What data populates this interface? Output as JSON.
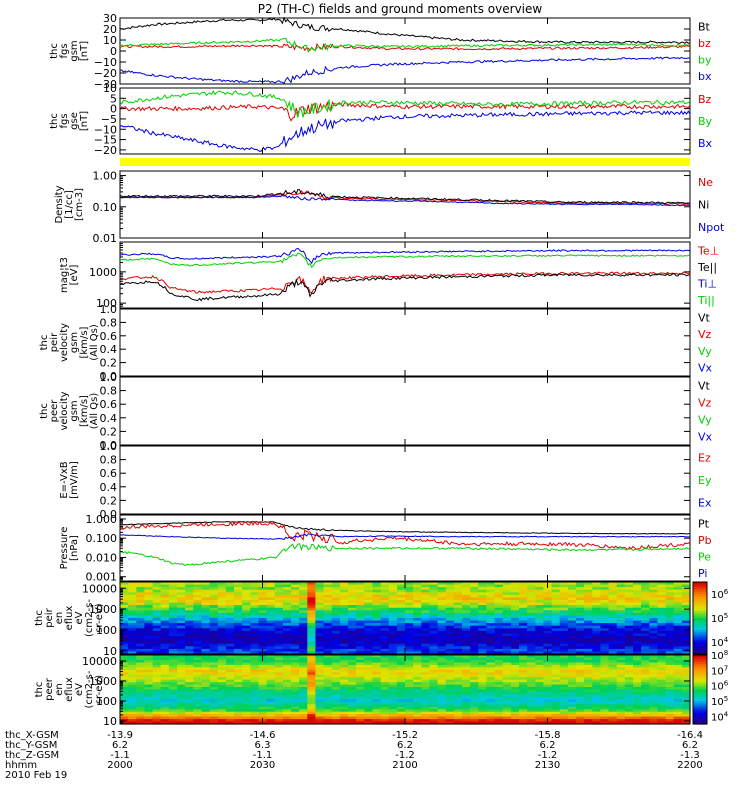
{
  "title": "P2 (TH-C) fields and ground moments overview",
  "colors": {
    "black": "#000000",
    "red": "#e00000",
    "green": "#00d000",
    "blue": "#0000e0",
    "yellow": "#ffff00"
  },
  "chart_data": [
    {
      "type": "line",
      "panel": "fgs_gsm",
      "ylabel": [
        "thc",
        "fgs",
        "gsm",
        "[nT]"
      ],
      "ylim": [
        -30,
        30
      ],
      "yticks": [
        "30",
        "20",
        "10",
        "0",
        "−10",
        "−20",
        "−30"
      ],
      "yticks_values": [
        30,
        20,
        10,
        0,
        -10,
        -20,
        -30
      ],
      "series": [
        {
          "name": "Bt",
          "color": "black",
          "x": [
            0,
            20,
            40,
            60,
            80,
            92,
            110,
            130,
            160,
            200,
            260,
            300,
            335
          ],
          "values": [
            20,
            24,
            26,
            28,
            28,
            29,
            22,
            20,
            15,
            10,
            8,
            8,
            8
          ],
          "noise": 1
        },
        {
          "name": "bz",
          "color": "red",
          "x": [
            0,
            40,
            80,
            96,
            110,
            130,
            160,
            220,
            300,
            335
          ],
          "values": [
            4,
            4,
            5,
            4,
            3,
            4,
            2,
            2,
            3,
            4
          ],
          "noise": 1
        },
        {
          "name": "by",
          "color": "green",
          "x": [
            0,
            40,
            80,
            96,
            110,
            130,
            160,
            220,
            300,
            335
          ],
          "values": [
            5,
            7,
            9,
            10,
            2,
            5,
            4,
            5,
            6,
            5
          ],
          "noise": 1
        },
        {
          "name": "bx",
          "color": "blue",
          "x": [
            0,
            20,
            40,
            60,
            80,
            92,
            100,
            110,
            130,
            160,
            200,
            260,
            300,
            335
          ],
          "values": [
            -18,
            -22,
            -25,
            -27,
            -28,
            -28,
            -26,
            -20,
            -15,
            -12,
            -10,
            -8,
            -7,
            -6
          ],
          "noise": 1
        }
      ]
    },
    {
      "type": "line",
      "panel": "fgs_gse",
      "ylabel": [
        "thc",
        "fgs",
        "gse",
        "[nT]"
      ],
      "ylim": [
        -22,
        10
      ],
      "yticks": [
        "10",
        "5",
        "0",
        "−5",
        "−10",
        "−15",
        "−20"
      ],
      "yticks_values": [
        10,
        5,
        0,
        -5,
        -10,
        -15,
        -20
      ],
      "series": [
        {
          "name": "Bz",
          "color": "red",
          "x": [
            0,
            40,
            80,
            95,
            100,
            110,
            130,
            160,
            220,
            300,
            335
          ],
          "values": [
            0,
            0,
            1,
            0,
            -3,
            0,
            2,
            1,
            1,
            1,
            1
          ],
          "noise": 1
        },
        {
          "name": "By",
          "color": "green",
          "x": [
            0,
            30,
            60,
            80,
            95,
            105,
            130,
            160,
            220,
            300,
            335
          ],
          "values": [
            3,
            6,
            8,
            7,
            5,
            -2,
            3,
            3,
            2,
            3,
            3
          ],
          "noise": 1
        },
        {
          "name": "Bx",
          "color": "blue",
          "x": [
            0,
            20,
            40,
            60,
            80,
            92,
            100,
            110,
            130,
            160,
            220,
            300,
            335
          ],
          "values": [
            -8,
            -12,
            -15,
            -18,
            -20,
            -19,
            -14,
            -10,
            -6,
            -4,
            -3,
            -2,
            -2
          ],
          "noise": 1
        }
      ]
    },
    {
      "type": "line",
      "panel": "density",
      "ylabel": [
        "Density",
        "[1/cc]",
        "[cm-3]"
      ],
      "scale": "log",
      "ylim": [
        0.01,
        1.4
      ],
      "yticks": [
        "1.00",
        "0.10",
        "0.01"
      ],
      "yticks_values": [
        1.0,
        0.1,
        0.01
      ],
      "series": [
        {
          "name": "Ne",
          "color": "red",
          "x": [
            0,
            40,
            80,
            95,
            108,
            120,
            140,
            180,
            220,
            260,
            300,
            335
          ],
          "values": [
            0.2,
            0.2,
            0.2,
            0.25,
            0.3,
            0.2,
            0.18,
            0.17,
            0.15,
            0.13,
            0.13,
            0.12
          ],
          "noise": 0.04
        },
        {
          "name": "Ni",
          "color": "black",
          "x": [
            0,
            40,
            80,
            95,
            108,
            120,
            140,
            180,
            220,
            260,
            300,
            335
          ],
          "values": [
            0.22,
            0.22,
            0.22,
            0.27,
            0.3,
            0.22,
            0.2,
            0.18,
            0.16,
            0.14,
            0.14,
            0.13
          ],
          "noise": 0.06
        },
        {
          "name": "Npot",
          "color": "blue",
          "x": [
            0,
            40,
            80,
            95,
            108,
            120,
            140,
            180,
            220,
            260,
            300,
            335
          ],
          "values": [
            0.2,
            0.2,
            0.2,
            0.22,
            0.18,
            0.18,
            0.16,
            0.15,
            0.13,
            0.12,
            0.12,
            0.11
          ],
          "noise": 0.03
        }
      ]
    },
    {
      "type": "line",
      "panel": "temperature",
      "ylabel": [
        "mag¦t3",
        "[eV]"
      ],
      "scale": "log",
      "ylim": [
        70,
        9000
      ],
      "yticks": [
        "1000",
        "100"
      ],
      "yticks_values": [
        1000,
        100
      ],
      "series": [
        {
          "name": "Te⊥",
          "color": "red",
          "x": [
            0,
            20,
            30,
            45,
            60,
            80,
            95,
            105,
            112,
            120,
            150,
            200,
            260,
            300,
            335
          ],
          "values": [
            600,
            700,
            300,
            220,
            240,
            260,
            300,
            600,
            200,
            600,
            700,
            800,
            900,
            900,
            900
          ],
          "noise": 0.08
        },
        {
          "name": "Te||",
          "color": "black",
          "x": [
            0,
            20,
            30,
            45,
            60,
            80,
            95,
            105,
            112,
            120,
            150,
            200,
            260,
            300,
            335
          ],
          "values": [
            400,
            500,
            200,
            130,
            150,
            170,
            200,
            500,
            150,
            500,
            600,
            700,
            800,
            800,
            800
          ],
          "noise": 0.08
        },
        {
          "name": "Ti⊥",
          "color": "blue",
          "x": [
            0,
            20,
            30,
            40,
            60,
            80,
            95,
            105,
            112,
            120,
            150,
            200,
            260,
            300,
            335
          ],
          "values": [
            3500,
            3800,
            2800,
            2600,
            2800,
            3000,
            3200,
            5000,
            2000,
            4000,
            4200,
            4500,
            4800,
            4800,
            4800
          ],
          "noise": 0.05
        },
        {
          "name": "Ti||",
          "color": "green",
          "x": [
            0,
            20,
            30,
            40,
            60,
            80,
            95,
            105,
            112,
            120,
            150,
            200,
            260,
            300,
            335
          ],
          "values": [
            2400,
            2600,
            1800,
            1600,
            1800,
            2000,
            2200,
            3500,
            1500,
            2800,
            3000,
            3200,
            3300,
            3300,
            3300
          ],
          "noise": 0.05
        }
      ]
    },
    {
      "type": "line",
      "panel": "peir_velocity",
      "ylabel": [
        "thc",
        "peir",
        "velocity",
        "gsm",
        "[km/s]",
        "(All Qs)"
      ],
      "ylim": [
        0,
        1
      ],
      "yticks": [
        "1.0",
        "0.8",
        "0.6",
        "0.4",
        "0.2",
        "0.0"
      ],
      "yticks_values": [
        1,
        0.8,
        0.6,
        0.4,
        0.2,
        0
      ],
      "series": [
        {
          "name": "Vt",
          "color": "black"
        },
        {
          "name": "Vz",
          "color": "red"
        },
        {
          "name": "Vy",
          "color": "green"
        },
        {
          "name": "Vx",
          "color": "blue"
        }
      ]
    },
    {
      "type": "line",
      "panel": "peer_velocity",
      "ylabel": [
        "thc",
        "peer",
        "velocity",
        "gsm",
        "[km/s]",
        "(All Qs)"
      ],
      "ylim": [
        0,
        1
      ],
      "yticks": [
        "1.0",
        "0.8",
        "0.6",
        "0.4",
        "0.2",
        "0.0"
      ],
      "yticks_values": [
        1,
        0.8,
        0.6,
        0.4,
        0.2,
        0
      ],
      "series": [
        {
          "name": "Vt",
          "color": "black"
        },
        {
          "name": "Vz",
          "color": "red"
        },
        {
          "name": "Vy",
          "color": "green"
        },
        {
          "name": "Vx",
          "color": "blue"
        }
      ]
    },
    {
      "type": "line",
      "panel": "efield",
      "ylabel": [
        "E=-VxB",
        "[mV/m]"
      ],
      "ylim": [
        0,
        1
      ],
      "yticks": [
        "1.0",
        "0.8",
        "0.6",
        "0.4",
        "0.2",
        "0.0"
      ],
      "yticks_values": [
        1,
        0.8,
        0.6,
        0.4,
        0.2,
        0
      ],
      "series": [
        {
          "name": "Ez",
          "color": "red"
        },
        {
          "name": "Ey",
          "color": "green"
        },
        {
          "name": "Ex",
          "color": "blue"
        }
      ]
    },
    {
      "type": "line",
      "panel": "pressure",
      "ylabel": [
        "Pressure",
        "[nPa]"
      ],
      "scale": "log",
      "ylim": [
        0.0006,
        1.6
      ],
      "yticks": [
        "1.000",
        "0.100",
        "0.010",
        "0.001"
      ],
      "yticks_values": [
        1.0,
        0.1,
        0.01,
        0.001
      ],
      "series": [
        {
          "name": "Pt",
          "color": "black",
          "x": [
            0,
            30,
            60,
            90,
            100,
            110,
            130,
            160,
            200,
            260,
            300,
            335
          ],
          "values": [
            0.5,
            0.6,
            0.7,
            0.7,
            0.4,
            0.3,
            0.25,
            0.22,
            0.2,
            0.18,
            0.17,
            0.17
          ],
          "noise": 0.03
        },
        {
          "name": "Pb",
          "color": "red",
          "x": [
            0,
            30,
            60,
            90,
            100,
            110,
            130,
            160,
            200,
            260,
            300,
            335
          ],
          "values": [
            0.35,
            0.45,
            0.55,
            0.6,
            0.1,
            0.15,
            0.06,
            0.1,
            0.05,
            0.05,
            0.03,
            0.05
          ],
          "noise": 0.2
        },
        {
          "name": "Pe",
          "color": "green",
          "x": [
            0,
            20,
            30,
            40,
            60,
            80,
            92,
            100,
            120,
            160,
            200,
            260,
            300,
            335
          ],
          "values": [
            0.02,
            0.01,
            0.005,
            0.004,
            0.006,
            0.008,
            0.01,
            0.04,
            0.03,
            0.03,
            0.03,
            0.025,
            0.025,
            0.03
          ],
          "noise": 0.1
        },
        {
          "name": "Pi",
          "color": "blue",
          "x": [
            0,
            30,
            60,
            90,
            100,
            110,
            130,
            160,
            200,
            260,
            300,
            335
          ],
          "values": [
            0.15,
            0.12,
            0.1,
            0.09,
            0.1,
            0.15,
            0.12,
            0.13,
            0.12,
            0.12,
            0.12,
            0.12
          ],
          "noise": 0.04
        }
      ]
    },
    {
      "type": "heatmap",
      "panel": "peir_spectrogram",
      "ylabel": [
        "thc",
        "peir",
        "en",
        "eflux",
        "eV",
        "(cm2-s-",
        "sr-eV)"
      ],
      "scale": "log",
      "ylim": [
        7,
        20000
      ],
      "yticks": [
        "10000",
        "1000",
        "100",
        "10"
      ],
      "yticks_values": [
        10000,
        1000,
        100,
        10
      ],
      "colorbar": {
        "ticks": [
          "10^6",
          "10^5",
          "10^4"
        ],
        "values": [
          6,
          5,
          4
        ],
        "range": [
          3.5,
          6.5
        ]
      },
      "rows": [
        {
          "energy": 10000,
          "level": 5.3
        },
        {
          "energy": 3000,
          "level": 5.6
        },
        {
          "energy": 1000,
          "level": 5.1
        },
        {
          "energy": 300,
          "level": 4.5
        },
        {
          "energy": 100,
          "level": 4.0
        },
        {
          "energy": 30,
          "level": 3.8
        },
        {
          "energy": 10,
          "level": 4.2
        }
      ]
    },
    {
      "type": "heatmap",
      "panel": "peer_spectrogram",
      "ylabel": [
        "thc",
        "peer",
        "en",
        "eflux",
        "eV",
        "(cm2-s-",
        "sr-eV)"
      ],
      "scale": "log",
      "ylim": [
        7,
        20000
      ],
      "yticks": [
        "10000",
        "1000",
        "100",
        "10"
      ],
      "yticks_values": [
        10000,
        1000,
        100,
        10
      ],
      "colorbar": {
        "ticks": [
          "10^8",
          "10^7",
          "10^6",
          "10^5",
          "10^4"
        ],
        "values": [
          8,
          7,
          6,
          5,
          4
        ],
        "range": [
          3.5,
          8
        ]
      },
      "rows": [
        {
          "energy": 10000,
          "level": 5.8
        },
        {
          "energy": 3000,
          "level": 6.6
        },
        {
          "energy": 1000,
          "level": 6.2
        },
        {
          "energy": 300,
          "level": 5.6
        },
        {
          "energy": 100,
          "level": 5.2
        },
        {
          "energy": 30,
          "level": 6.0
        },
        {
          "energy": 10,
          "level": 8.0
        }
      ]
    }
  ],
  "x_axis": {
    "minutes": [
      0,
      30,
      60,
      90,
      120
    ],
    "row_labels": [
      "thc_X-GSM",
      "thc_Y-GSM",
      "thc_Z-GSM",
      "hhmm",
      "2010 Feb 19"
    ],
    "x_gsm": [
      "-13.9",
      "-14.6",
      "-15.2",
      "-15.8",
      "-16.4"
    ],
    "y_gsm": [
      "6.2",
      "6.3",
      "6.2",
      "6.2",
      "6.2"
    ],
    "z_gsm": [
      "-1.1",
      "-1.1",
      "-1.2",
      "-1.2",
      "-1.3"
    ],
    "hhmm": [
      "2000",
      "2030",
      "2100",
      "2130",
      "2200"
    ]
  }
}
